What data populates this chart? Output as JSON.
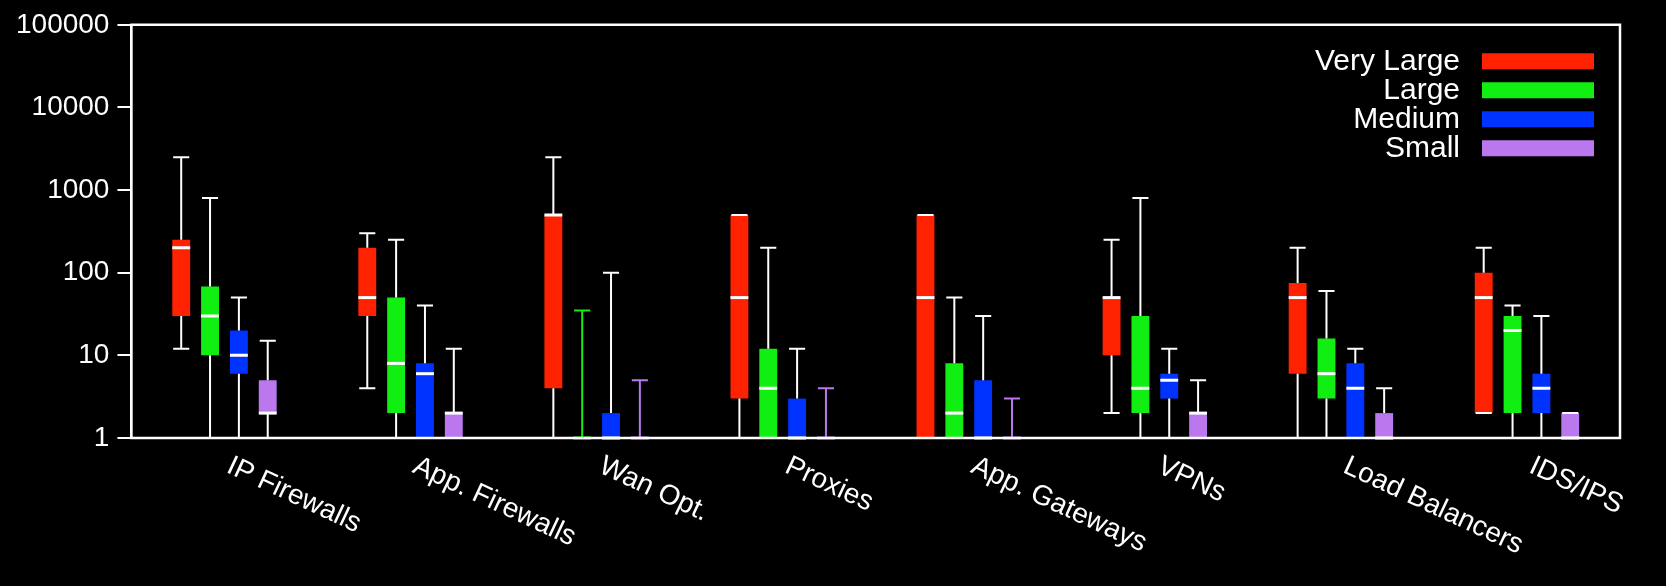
{
  "chart_data": {
    "type": "box",
    "categories": [
      "IP Firewalls",
      "App. Firewalls",
      "Wan Opt.",
      "Proxies",
      "App. Gateways",
      "VPNs",
      "Load Balancers",
      "IDS/IPS"
    ],
    "series": [
      {
        "name": "Very Large",
        "color": "#ff2200",
        "boxes": [
          {
            "low": 12,
            "q1": 30,
            "median": 200,
            "q3": 250,
            "high": 2500
          },
          {
            "low": 4,
            "q1": 30,
            "median": 50,
            "q3": 200,
            "high": 300
          },
          {
            "low": 1,
            "q1": 4,
            "median": 500,
            "q3": 500,
            "high": 2500
          },
          {
            "low": 1,
            "q1": 3,
            "median": 50,
            "q3": 500,
            "high": 500
          },
          {
            "low": 1,
            "q1": 1,
            "median": 50,
            "q3": 500,
            "high": 500
          },
          {
            "low": 2,
            "q1": 10,
            "median": 50,
            "q3": 50,
            "high": 250
          },
          {
            "low": 1,
            "q1": 6,
            "median": 50,
            "q3": 75,
            "high": 200
          },
          {
            "low": 2,
            "q1": 2,
            "median": 50,
            "q3": 100,
            "high": 200
          }
        ]
      },
      {
        "name": "Large",
        "color": "#11ee11",
        "boxes": [
          {
            "low": 1,
            "q1": 10,
            "median": 30,
            "q3": 68,
            "high": 800
          },
          {
            "low": 1,
            "q1": 2,
            "median": 8,
            "q3": 50,
            "high": 250
          },
          {
            "low": 1,
            "q1": 1,
            "median": 1,
            "q3": 1,
            "high": 35
          },
          {
            "low": 1,
            "q1": 1,
            "median": 4,
            "q3": 12,
            "high": 200
          },
          {
            "low": 1,
            "q1": 1,
            "median": 2,
            "q3": 8,
            "high": 50
          },
          {
            "low": 1,
            "q1": 2,
            "median": 4,
            "q3": 30,
            "high": 800
          },
          {
            "low": 1,
            "q1": 3,
            "median": 6,
            "q3": 16,
            "high": 60
          },
          {
            "low": 1,
            "q1": 2,
            "median": 20,
            "q3": 30,
            "high": 40
          }
        ]
      },
      {
        "name": "Medium",
        "color": "#0033ff",
        "boxes": [
          {
            "low": 1,
            "q1": 6,
            "median": 10,
            "q3": 20,
            "high": 50
          },
          {
            "low": 1,
            "q1": 1,
            "median": 6,
            "q3": 8,
            "high": 40
          },
          {
            "low": 1,
            "q1": 1,
            "median": 1,
            "q3": 2,
            "high": 100
          },
          {
            "low": 1,
            "q1": 1,
            "median": 1,
            "q3": 3,
            "high": 12
          },
          {
            "low": 1,
            "q1": 1,
            "median": 1,
            "q3": 5,
            "high": 30
          },
          {
            "low": 1,
            "q1": 3,
            "median": 5,
            "q3": 6,
            "high": 12
          },
          {
            "low": 1,
            "q1": 1,
            "median": 4,
            "q3": 8,
            "high": 12
          },
          {
            "low": 1,
            "q1": 2,
            "median": 4,
            "q3": 6,
            "high": 30
          }
        ]
      },
      {
        "name": "Small",
        "color": "#bb77ee",
        "boxes": [
          {
            "low": 1,
            "q1": 2,
            "median": 2,
            "q3": 5,
            "high": 15
          },
          {
            "low": 1,
            "q1": 1,
            "median": 2,
            "q3": 2,
            "high": 12
          },
          {
            "low": 1,
            "q1": 1,
            "median": 1,
            "q3": 1,
            "high": 5
          },
          {
            "low": 1,
            "q1": 1,
            "median": 1,
            "q3": 1,
            "high": 4
          },
          {
            "low": 1,
            "q1": 1,
            "median": 1,
            "q3": 1,
            "high": 3
          },
          {
            "low": 1,
            "q1": 1,
            "median": 2,
            "q3": 2,
            "high": 5
          },
          {
            "low": 1,
            "q1": 1,
            "median": 1,
            "q3": 2,
            "high": 4
          },
          {
            "low": 1,
            "q1": 1,
            "median": 1,
            "q3": 2,
            "high": 2
          }
        ]
      }
    ],
    "ylim": [
      1,
      100000
    ],
    "yticks": [
      1,
      10,
      100,
      1000,
      10000,
      100000
    ],
    "log": true,
    "grid": false,
    "legend": "top right"
  }
}
